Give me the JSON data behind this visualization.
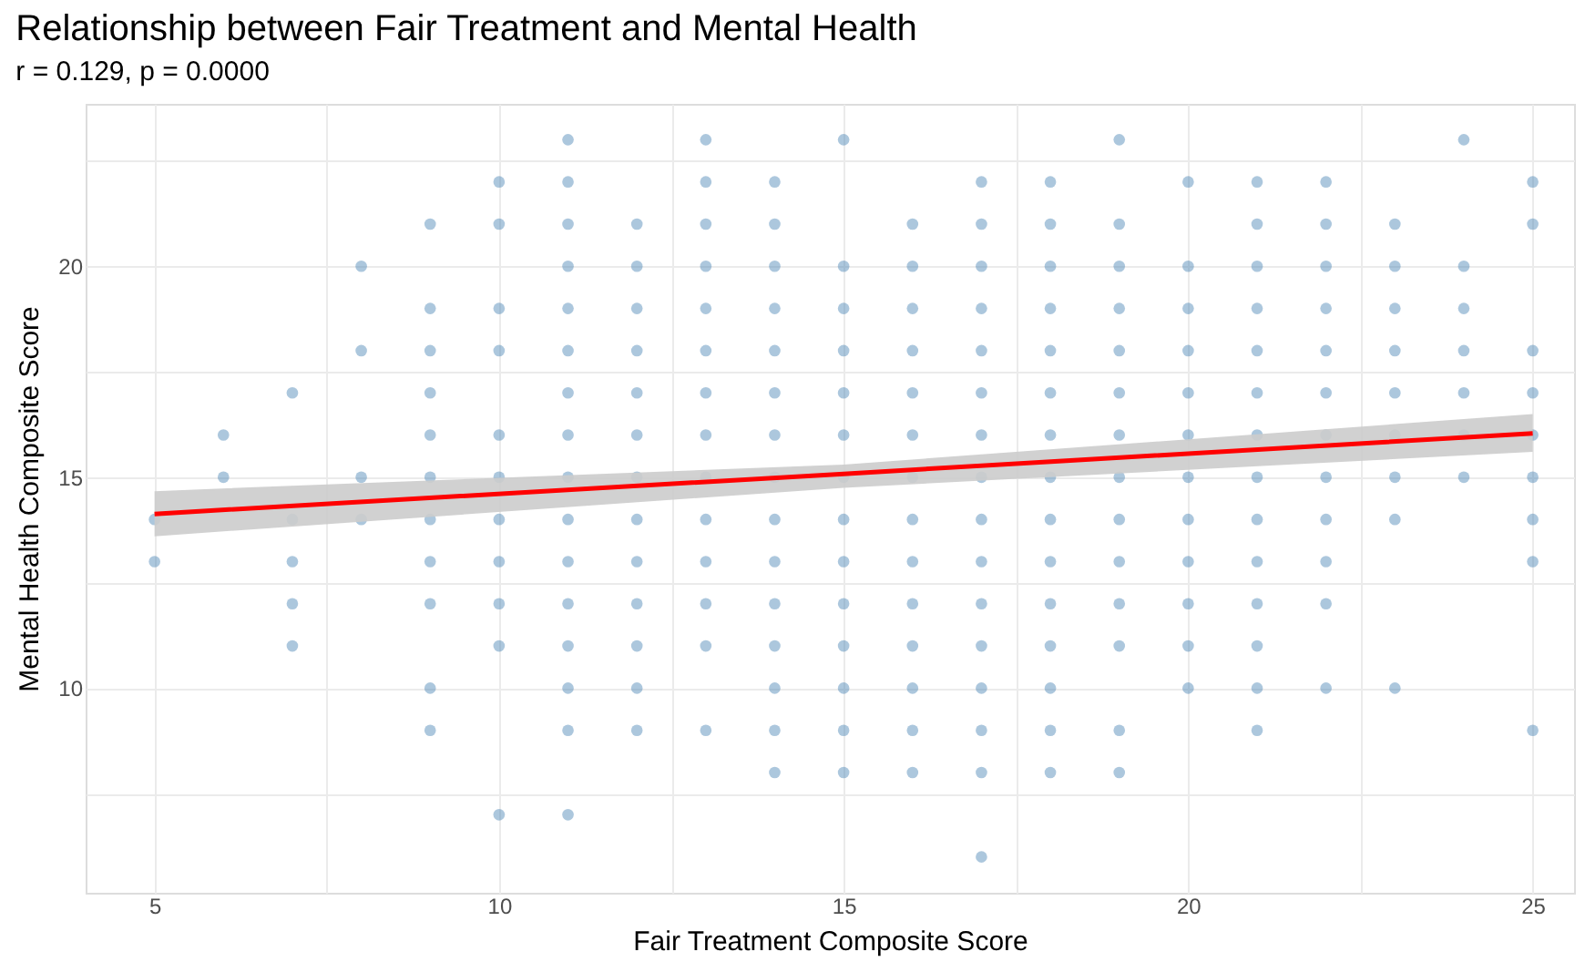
{
  "chart_data": {
    "type": "scatter",
    "title": "Relationship between Fair Treatment and Mental Health",
    "subtitle": "r = 0.129, p = 0.0000",
    "xlabel": "Fair Treatment Composite Score",
    "ylabel": "Mental Health Composite Score",
    "xlim": [
      4,
      25.6
    ],
    "ylim": [
      5.15,
      23.85
    ],
    "xticks": [
      5,
      {
        "value": 7.5,
        "label": null
      },
      10,
      {
        "value": 12.5,
        "label": null
      },
      15,
      {
        "value": 17.5,
        "label": null
      },
      20,
      {
        "value": 22.5,
        "label": null
      },
      25
    ],
    "yticks": [
      {
        "value": 7.5,
        "label": null
      },
      10,
      {
        "value": 12.5,
        "label": null
      },
      15,
      {
        "value": 17.5,
        "label": null
      },
      20,
      {
        "value": 22.5,
        "label": null
      }
    ],
    "grid": true,
    "legend": false,
    "marker": "circle",
    "series": [
      {
        "color": "#4682b4",
        "x": [
          5,
          5,
          6,
          6,
          7,
          7,
          7,
          7,
          7,
          8,
          8,
          8,
          8,
          9,
          9,
          9,
          9,
          9,
          9,
          9,
          9,
          9,
          9,
          9,
          10,
          10,
          10,
          10,
          10,
          10,
          10,
          10,
          10,
          10,
          10,
          11,
          11,
          11,
          11,
          11,
          11,
          11,
          11,
          11,
          11,
          11,
          11,
          11,
          11,
          11,
          11,
          12,
          12,
          12,
          12,
          12,
          12,
          12,
          12,
          12,
          12,
          12,
          12,
          12,
          13,
          13,
          13,
          13,
          13,
          13,
          13,
          13,
          13,
          13,
          13,
          13,
          13,
          13,
          14,
          14,
          14,
          14,
          14,
          14,
          14,
          14,
          14,
          14,
          14,
          14,
          14,
          14,
          14,
          15,
          15,
          15,
          15,
          15,
          15,
          15,
          15,
          15,
          15,
          15,
          15,
          15,
          15,
          16,
          16,
          16,
          16,
          16,
          16,
          16,
          16,
          16,
          16,
          16,
          16,
          16,
          16,
          17,
          17,
          17,
          17,
          17,
          17,
          17,
          17,
          17,
          17,
          17,
          17,
          17,
          17,
          17,
          17,
          18,
          18,
          18,
          18,
          18,
          18,
          18,
          18,
          18,
          18,
          18,
          18,
          18,
          18,
          18,
          19,
          19,
          19,
          19,
          19,
          19,
          19,
          19,
          19,
          19,
          19,
          19,
          19,
          19,
          20,
          20,
          20,
          20,
          20,
          20,
          20,
          20,
          20,
          20,
          20,
          20,
          21,
          21,
          21,
          21,
          21,
          21,
          21,
          21,
          21,
          21,
          21,
          21,
          21,
          21,
          22,
          22,
          22,
          22,
          22,
          22,
          22,
          22,
          22,
          22,
          22,
          22,
          23,
          23,
          23,
          23,
          23,
          23,
          23,
          23,
          23,
          24,
          24,
          24,
          24,
          24,
          24,
          24,
          25,
          25,
          25,
          25,
          25,
          25,
          25,
          25,
          25
        ],
        "values": [
          14,
          13,
          16,
          15,
          17,
          14,
          13,
          12,
          11,
          20,
          18,
          15,
          14,
          21,
          19,
          18,
          17,
          16,
          15,
          14,
          13,
          12,
          10,
          9,
          22,
          21,
          19,
          18,
          16,
          15,
          14,
          13,
          12,
          11,
          7,
          23,
          22,
          21,
          20,
          19,
          18,
          17,
          16,
          15,
          14,
          13,
          12,
          11,
          10,
          9,
          7,
          21,
          20,
          19,
          18,
          17,
          16,
          15,
          14,
          13,
          12,
          11,
          10,
          9,
          23,
          22,
          21,
          20,
          19,
          18,
          17,
          16,
          15,
          14,
          13,
          12,
          11,
          9,
          22,
          21,
          20,
          19,
          18,
          17,
          16,
          15,
          14,
          13,
          12,
          11,
          10,
          9,
          8,
          23,
          20,
          19,
          18,
          17,
          16,
          15,
          14,
          13,
          12,
          11,
          10,
          9,
          8,
          21,
          20,
          19,
          18,
          17,
          16,
          15,
          14,
          13,
          12,
          11,
          10,
          9,
          8,
          22,
          21,
          20,
          19,
          18,
          17,
          16,
          15,
          14,
          13,
          12,
          11,
          10,
          9,
          8,
          6,
          22,
          21,
          20,
          19,
          18,
          17,
          16,
          15,
          14,
          13,
          12,
          11,
          10,
          9,
          8,
          23,
          21,
          20,
          19,
          18,
          17,
          16,
          15,
          14,
          13,
          12,
          11,
          9,
          8,
          22,
          20,
          19,
          18,
          17,
          16,
          15,
          14,
          13,
          12,
          11,
          10,
          22,
          21,
          20,
          19,
          18,
          17,
          16,
          15,
          14,
          13,
          12,
          11,
          10,
          9,
          22,
          21,
          20,
          19,
          18,
          17,
          16,
          15,
          14,
          13,
          12,
          10,
          21,
          20,
          19,
          18,
          17,
          16,
          15,
          14,
          10,
          23,
          20,
          19,
          18,
          17,
          16,
          15,
          22,
          21,
          18,
          17,
          16,
          15,
          14,
          13,
          9
        ]
      },
      {
        "type": "line",
        "marker": "none",
        "line_style": "solid",
        "color": "#ff0000",
        "x": [
          5,
          15,
          25
        ],
        "values": [
          14.13,
          15.08,
          16.04
        ],
        "lower": [
          13.6,
          14.75,
          15.6
        ],
        "upper": [
          14.67,
          15.3,
          16.5
        ]
      }
    ]
  }
}
